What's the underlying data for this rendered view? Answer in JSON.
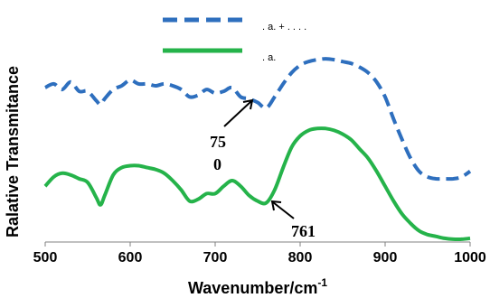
{
  "chart_data": {
    "type": "line",
    "xlabel": "Wavenumber/cm",
    "xlabel_sup": "-1",
    "ylabel": "Ralative Transmitance",
    "xlim": [
      500,
      1000
    ],
    "x_ticks": [
      500,
      600,
      700,
      800,
      900,
      1000
    ],
    "grid": false,
    "legend_position": "top-center",
    "colors": {
      "series1": "#2e6fbe",
      "series2": "#25b34a",
      "axis": "#808080",
      "arrow": "#000000"
    },
    "series": [
      {
        "name": ". a. + . . . .",
        "style": "dashed",
        "x": [
          500,
          510,
          520,
          530,
          540,
          550,
          560,
          565,
          570,
          580,
          590,
          600,
          610,
          620,
          630,
          640,
          650,
          660,
          670,
          680,
          690,
          700,
          710,
          720,
          730,
          740,
          750,
          760,
          770,
          780,
          790,
          800,
          810,
          820,
          830,
          840,
          850,
          860,
          870,
          880,
          890,
          900,
          910,
          920,
          930,
          940,
          950,
          960,
          970,
          980,
          990,
          1000
        ],
        "y": [
          0.83,
          0.85,
          0.82,
          0.86,
          0.81,
          0.81,
          0.76,
          0.74,
          0.77,
          0.82,
          0.84,
          0.87,
          0.85,
          0.85,
          0.84,
          0.85,
          0.84,
          0.82,
          0.78,
          0.79,
          0.82,
          0.8,
          0.81,
          0.83,
          0.78,
          0.77,
          0.75,
          0.72,
          0.78,
          0.85,
          0.91,
          0.95,
          0.97,
          0.98,
          0.985,
          0.98,
          0.97,
          0.96,
          0.94,
          0.91,
          0.86,
          0.78,
          0.66,
          0.55,
          0.45,
          0.38,
          0.35,
          0.34,
          0.34,
          0.34,
          0.35,
          0.38
        ]
      },
      {
        "name": ". a.",
        "style": "solid",
        "x": [
          500,
          510,
          520,
          530,
          540,
          550,
          560,
          565,
          570,
          580,
          590,
          600,
          610,
          620,
          630,
          640,
          650,
          660,
          670,
          680,
          690,
          700,
          710,
          720,
          730,
          740,
          750,
          760,
          770,
          780,
          790,
          800,
          810,
          820,
          830,
          840,
          850,
          860,
          870,
          880,
          890,
          900,
          910,
          920,
          930,
          940,
          950,
          960,
          970,
          980,
          990,
          1000
        ],
        "y": [
          0.3,
          0.35,
          0.37,
          0.36,
          0.34,
          0.32,
          0.24,
          0.2,
          0.25,
          0.36,
          0.4,
          0.41,
          0.41,
          0.4,
          0.39,
          0.37,
          0.33,
          0.28,
          0.22,
          0.23,
          0.26,
          0.26,
          0.3,
          0.33,
          0.3,
          0.25,
          0.22,
          0.21,
          0.28,
          0.4,
          0.51,
          0.57,
          0.6,
          0.61,
          0.61,
          0.6,
          0.58,
          0.55,
          0.5,
          0.45,
          0.38,
          0.3,
          0.22,
          0.15,
          0.1,
          0.06,
          0.04,
          0.03,
          0.02,
          0.015,
          0.015,
          0.02
        ]
      }
    ],
    "annotations": [
      {
        "label": "75",
        "label2": "0",
        "target_x": 755,
        "target_y": 0.73
      },
      {
        "label": "761",
        "target_x": 763,
        "target_y": 0.21
      }
    ]
  }
}
